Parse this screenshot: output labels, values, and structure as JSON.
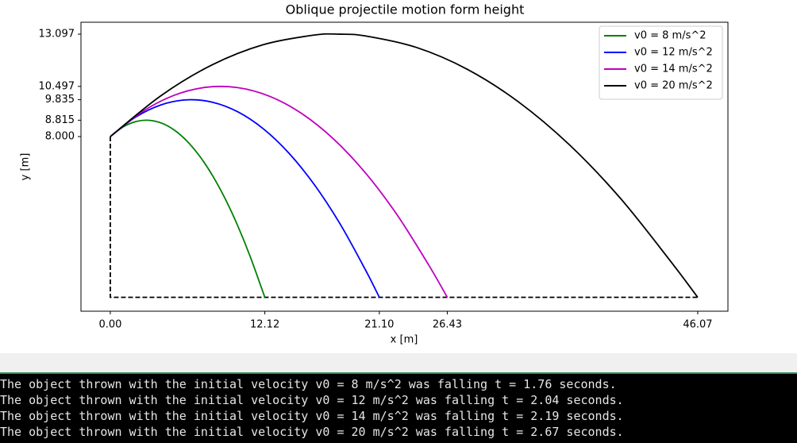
{
  "chart_data": {
    "type": "line",
    "title": "Oblique projectile motion form height",
    "x_label": "x [m]",
    "y_label": "y [m]",
    "xlim": [
      -2.3,
      48.44
    ],
    "ylim": [
      -0.69,
      13.69
    ],
    "xticks": [
      {
        "value": 0,
        "label": "0.00"
      },
      12.12,
      {
        "value": 21.1,
        "label": "21.10"
      },
      26.43,
      46.07
    ],
    "yticks": [
      {
        "value": 8,
        "label": "8.000"
      },
      8.815,
      9.835,
      10.497,
      13.097
    ],
    "legend": "upper right",
    "series": [
      {
        "name": "v0 = 8 m/s^2",
        "color": "#008000",
        "x": [
          0,
          1,
          2,
          3,
          4,
          5,
          6,
          7,
          8,
          9,
          10,
          11,
          12.12
        ],
        "values": [
          8,
          8.475,
          8.746,
          8.812,
          8.674,
          8.332,
          7.785,
          7.034,
          6.079,
          4.919,
          3.555,
          1.986,
          0
        ]
      },
      {
        "name": "v0 = 12 m/s^2",
        "color": "#0000ff",
        "x": [
          0,
          2,
          4,
          6,
          8,
          10,
          12,
          14,
          16,
          18,
          20,
          21.1
        ],
        "values": [
          8,
          8.973,
          9.582,
          9.829,
          9.712,
          9.232,
          8.388,
          7.181,
          5.611,
          3.677,
          1.38,
          0
        ]
      },
      {
        "name": "v0 = 14 m/s^2",
        "color": "#bf00bf",
        "x": [
          0,
          2.5,
          5,
          7.5,
          10,
          12.5,
          15,
          17.5,
          20,
          22.5,
          25,
          26.43
        ],
        "values": [
          8,
          9.234,
          10.053,
          10.453,
          10.437,
          10.003,
          9.152,
          7.885,
          6.2,
          4.098,
          1.58,
          0
        ]
      },
      {
        "name": "v0 = 20 m/s^2",
        "color": "#000000",
        "x": [
          0,
          4,
          8,
          12,
          16,
          18,
          20,
          24,
          28,
          32,
          36,
          40,
          44,
          46.07
        ],
        "values": [
          8,
          10.047,
          11.573,
          12.574,
          13.052,
          13.095,
          13.007,
          12.438,
          11.348,
          9.733,
          7.595,
          4.934,
          1.749,
          0
        ]
      }
    ],
    "dashed_outline": {
      "color": "#000000",
      "x": [
        0,
        0,
        46.07
      ],
      "values": [
        8,
        0,
        0
      ]
    }
  },
  "console": {
    "lines": [
      "The object thrown with the initial velocity v0 = 8 m/s^2 was falling t = 1.76 seconds.",
      "The object thrown with the initial velocity v0 = 12 m/s^2 was falling t = 2.04 seconds.",
      "The object thrown with the initial velocity v0 = 14 m/s^2 was falling t = 2.19 seconds.",
      "The object thrown with the initial velocity v0 = 20 m/s^2 was falling t = 2.67 seconds."
    ]
  }
}
